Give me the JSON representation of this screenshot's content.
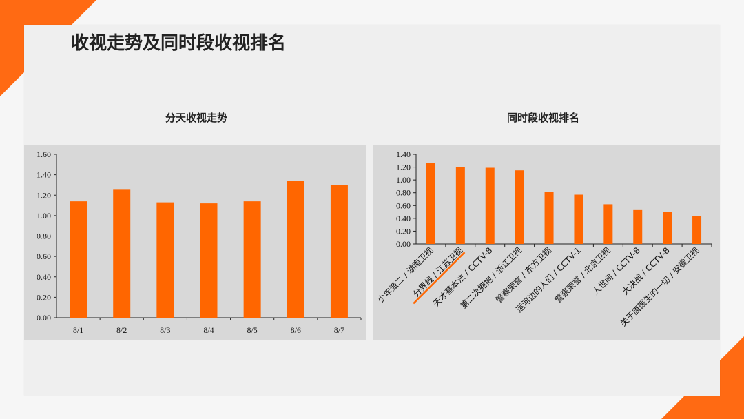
{
  "page": {
    "title": "收视走势及同时段收视排名"
  },
  "chart_data": [
    {
      "type": "bar",
      "title": "分天收视走势",
      "categories": [
        "8/1",
        "8/2",
        "8/3",
        "8/4",
        "8/5",
        "8/6",
        "8/7"
      ],
      "values": [
        1.14,
        1.26,
        1.13,
        1.12,
        1.14,
        1.34,
        1.3
      ],
      "ylim": [
        0,
        1.6
      ],
      "yticks": [
        "0.00",
        "0.20",
        "0.40",
        "0.60",
        "0.80",
        "1.00",
        "1.20",
        "1.40",
        "1.60"
      ],
      "xlabel": "",
      "ylabel": "",
      "color": "#ff6600",
      "grid": false
    },
    {
      "type": "bar",
      "title": "同时段收视排名",
      "categories": [
        "少年派二 / 湖南卫视",
        "分界线 / 江苏卫视",
        "天才基本法 / CCTV-8",
        "第二次拥抱 / 浙江卫视",
        "警察荣誉 / 东方卫视",
        "运河边的人们 / CCTV-1",
        "警察荣誉 / 北京卫视",
        "人世间 / CCTV-8",
        "大决战 / CCTV-8",
        "关于唐医生的一切 / 安徽卫视"
      ],
      "values": [
        1.27,
        1.2,
        1.19,
        1.15,
        0.81,
        0.77,
        0.62,
        0.54,
        0.5,
        0.44
      ],
      "ylim": [
        0,
        1.4
      ],
      "yticks": [
        "0.00",
        "0.20",
        "0.40",
        "0.60",
        "0.80",
        "1.00",
        "1.20",
        "1.40"
      ],
      "xlabel": "",
      "ylabel": "",
      "color": "#ff6600",
      "highlight_index": 1,
      "highlight_color": "#ff6600",
      "grid": false
    }
  ]
}
